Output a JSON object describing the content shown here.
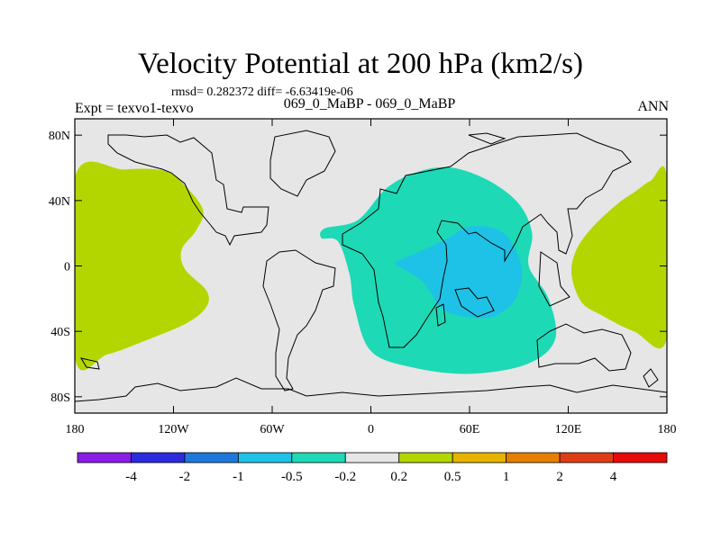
{
  "chart_data": {
    "type": "heatmap",
    "title": "Velocity Potential at 200 hPa (km2/s)",
    "stats_text": "rmsd= 0.282372   diff= -6.63419e-06",
    "experiment_label": "Expt = texvo1-texvo",
    "case_label": "069_0_MaBP - 069_0_MaBP",
    "season_label": "ANN",
    "x_axis": {
      "range": [
        -180,
        180
      ],
      "ticks": [
        -180,
        -120,
        -60,
        0,
        60,
        120,
        180
      ],
      "tick_labels": [
        "180",
        "120W",
        "60W",
        "0",
        "60E",
        "120E",
        "180"
      ]
    },
    "y_axis": {
      "range": [
        -90,
        90
      ],
      "ticks": [
        80,
        40,
        0,
        -40,
        -80
      ],
      "tick_labels": [
        "80N",
        "40N",
        "0",
        "40S",
        "80S"
      ]
    },
    "colorbar": {
      "levels": [
        "-4",
        "-2",
        "-1",
        "-0.5",
        "-0.2",
        "0.2",
        "0.5",
        "1",
        "2",
        "4"
      ],
      "colors": [
        "#8a1ce6",
        "#2b2be0",
        "#1e78dc",
        "#1ec2e6",
        "#1ed9b6",
        "#e6e6e6",
        "#b4d600",
        "#e6b400",
        "#e67f00",
        "#e03c14",
        "#e60a0a"
      ]
    },
    "background_color": "#e6e6e6",
    "regions": [
      {
        "name": "positive-west",
        "level": "0.2 to 0.5",
        "color": "#b4d600",
        "lonlat": [
          [
            -180,
            54
          ],
          [
            -150,
            59
          ],
          [
            -125,
            58
          ],
          [
            -112,
            48
          ],
          [
            -102,
            34
          ],
          [
            -106,
            22
          ],
          [
            -115,
            10
          ],
          [
            -113,
            -2
          ],
          [
            -100,
            -15
          ],
          [
            -100,
            -25
          ],
          [
            -112,
            -35
          ],
          [
            -138,
            -46
          ],
          [
            -160,
            -54
          ],
          [
            -180,
            -56
          ]
        ]
      },
      {
        "name": "negative-central",
        "level": "-0.5 to -0.2",
        "color": "#1ed9b6",
        "lonlat": [
          [
            -28,
            23
          ],
          [
            -8,
            28
          ],
          [
            10,
            48
          ],
          [
            30,
            58
          ],
          [
            50,
            60
          ],
          [
            72,
            52
          ],
          [
            90,
            38
          ],
          [
            98,
            20
          ],
          [
            96,
            0
          ],
          [
            108,
            -20
          ],
          [
            112,
            -45
          ],
          [
            95,
            -60
          ],
          [
            60,
            -66
          ],
          [
            25,
            -62
          ],
          [
            0,
            -52
          ],
          [
            -10,
            -25
          ],
          [
            -13,
            -5
          ],
          [
            -20,
            15
          ],
          [
            -30,
            17
          ]
        ]
      },
      {
        "name": "negative-core",
        "level": "-1 to -0.5",
        "color": "#1ec2e6",
        "lonlat": [
          [
            15,
            2
          ],
          [
            28,
            8
          ],
          [
            45,
            16
          ],
          [
            60,
            24
          ],
          [
            78,
            22
          ],
          [
            88,
            10
          ],
          [
            92,
            -5
          ],
          [
            88,
            -20
          ],
          [
            80,
            -28
          ],
          [
            70,
            -32
          ],
          [
            52,
            -30
          ],
          [
            42,
            -25
          ],
          [
            32,
            -10
          ],
          [
            20,
            -2
          ]
        ]
      },
      {
        "name": "positive-east",
        "level": "0.2 to 0.5",
        "color": "#b4d600",
        "lonlat": [
          [
            180,
            54
          ],
          [
            170,
            52
          ],
          [
            160,
            45
          ],
          [
            150,
            38
          ],
          [
            135,
            24
          ],
          [
            125,
            10
          ],
          [
            122,
            -5
          ],
          [
            128,
            -22
          ],
          [
            140,
            -30
          ],
          [
            160,
            -40
          ],
          [
            180,
            -44
          ]
        ]
      }
    ]
  }
}
